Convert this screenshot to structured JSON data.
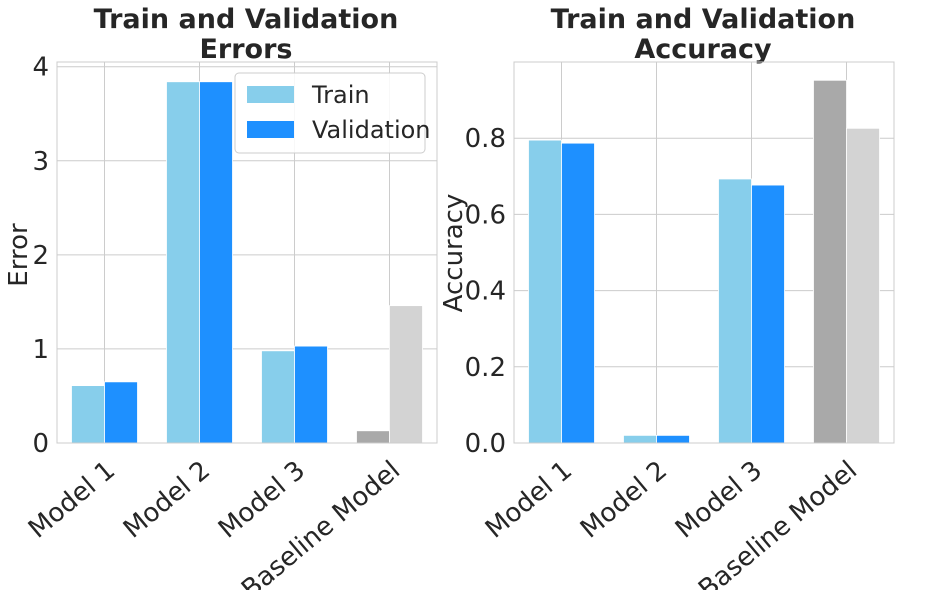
{
  "chart_data": [
    {
      "type": "bar",
      "title_line1": "Train and Validation",
      "title_line2": "Errors",
      "xlabel": "",
      "ylabel": "Error",
      "categories": [
        "Model 1",
        "Model 2",
        "Model 3",
        "Baseline Model"
      ],
      "ylim": [
        0,
        4.05
      ],
      "yticks": [
        0,
        1,
        2,
        3,
        4
      ],
      "series": [
        {
          "name": "Train",
          "values": [
            0.61,
            3.84,
            0.98,
            0.13
          ],
          "colors": [
            "#87ceeb",
            "#87ceeb",
            "#87ceeb",
            "#a9a9a9"
          ]
        },
        {
          "name": "Validation",
          "values": [
            0.65,
            3.84,
            1.03,
            1.46
          ],
          "colors": [
            "#1e90ff",
            "#1e90ff",
            "#1e90ff",
            "#d3d3d3"
          ]
        }
      ],
      "legend": "top-right",
      "grid": true
    },
    {
      "type": "bar",
      "title_line1": "Train and Validation",
      "title_line2": "Accuracy",
      "xlabel": "",
      "ylabel": "Accuracy",
      "categories": [
        "Model 1",
        "Model 2",
        "Model 3",
        "Baseline Model"
      ],
      "ylim": [
        0,
        1.0
      ],
      "yticks": [
        "0.0",
        "0.2",
        "0.4",
        "0.6",
        "0.8"
      ],
      "series": [
        {
          "name": "Train",
          "values": [
            0.795,
            0.02,
            0.693,
            0.952
          ],
          "colors": [
            "#87ceeb",
            "#87ceeb",
            "#87ceeb",
            "#a9a9a9"
          ]
        },
        {
          "name": "Validation",
          "values": [
            0.787,
            0.02,
            0.677,
            0.826
          ],
          "colors": [
            "#1e90ff",
            "#1e90ff",
            "#1e90ff",
            "#d3d3d3"
          ]
        }
      ],
      "grid": true
    }
  ]
}
